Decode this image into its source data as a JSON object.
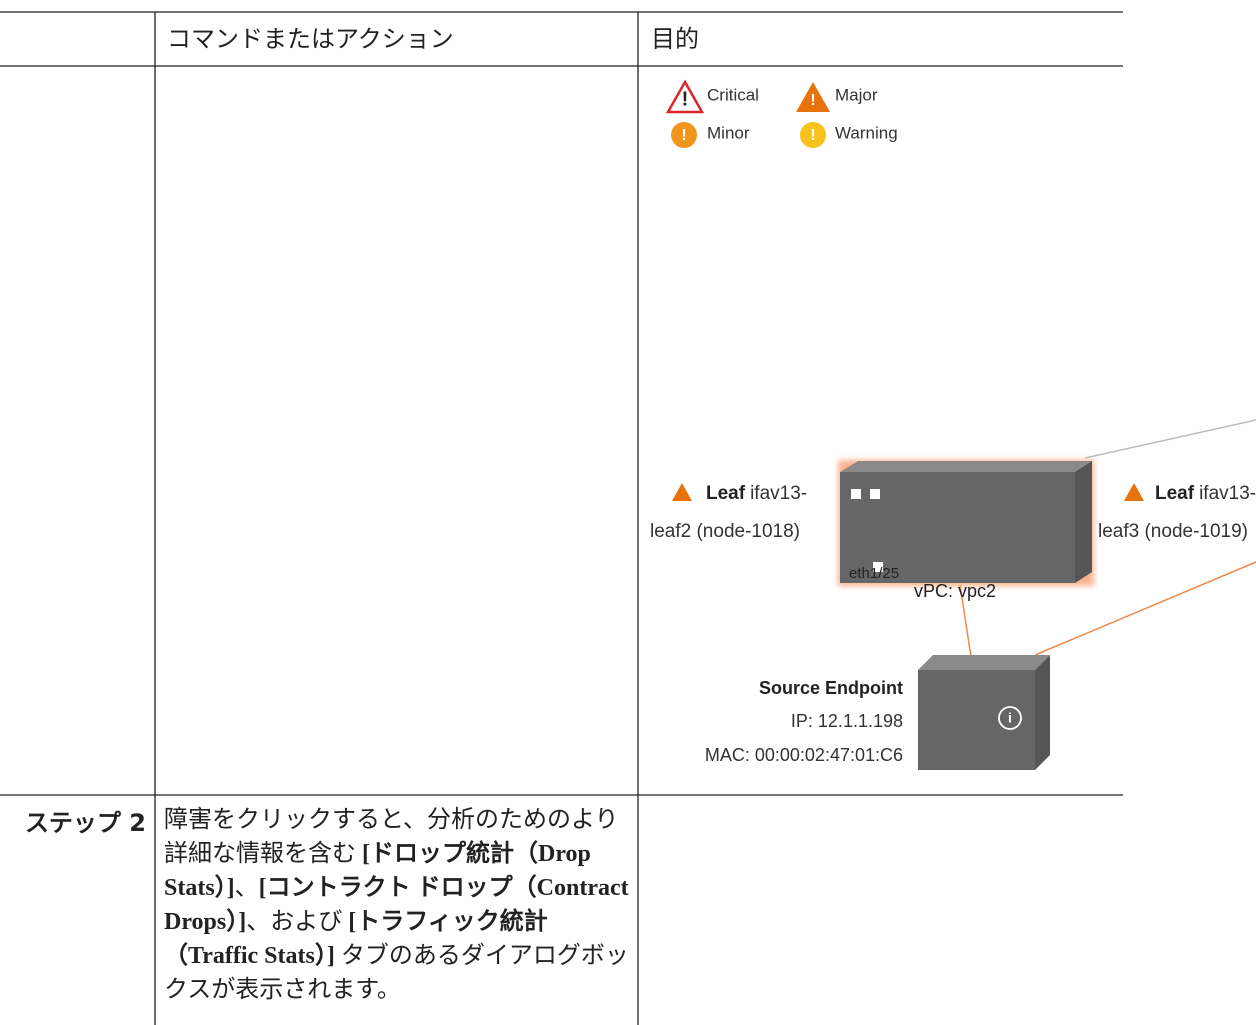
{
  "table": {
    "header": {
      "command": "コマンドまたはアクション",
      "purpose": "目的"
    },
    "rows": [
      {
        "diagram": {
          "legend": [
            "Critical",
            "Major",
            "Minor",
            "Warning"
          ],
          "nodes": [
            {
              "kind": "Leaf",
              "name": "ifav13-",
              "detail": "leaf2 (node-1018)"
            },
            {
              "kind": "Leaf",
              "name": "ifav13-",
              "detail": "leaf3 (node-1019)"
            }
          ],
          "port": "eth1/25",
          "vpc": "vPC: vpc2",
          "endpoint": {
            "title": "Source Endpoint",
            "ip": "IP: 12.1.1.198",
            "mac": "MAC: 00:00:02:47:01:C6"
          }
        }
      },
      {
        "step": "ステップ 2",
        "text": [
          "障害をクリックすると、分析のためのより詳細な情報を含む ",
          "[ドロップ統計（Drop Stats）]",
          "、",
          "[コントラクト ドロップ（Contract Drops）]",
          "、および ",
          "[トラフィック統計（Traffic Stats）]",
          " タブのあるダイアログボックスが表示されます。"
        ]
      }
    ]
  }
}
